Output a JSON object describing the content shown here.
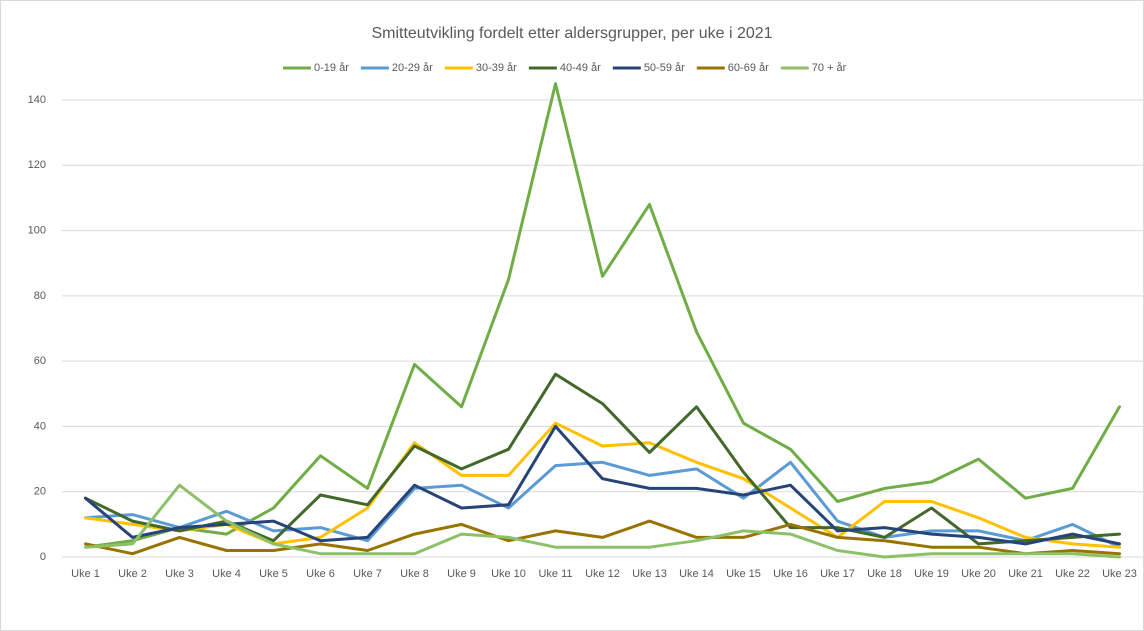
{
  "chart_data": {
    "type": "line",
    "title": "Smitteutvikling fordelt etter aldersgrupper, per uke i 2021",
    "categories": [
      "Uke 1",
      "Uke 2",
      "Uke 3",
      "Uke 4",
      "Uke 5",
      "Uke 6",
      "Uke 7",
      "Uke 8",
      "Uke 9",
      "Uke 10",
      "Uke 11",
      "Uke 12",
      "Uke 13",
      "Uke 14",
      "Uke 15",
      "Uke 16",
      "Uke 17",
      "Uke 18",
      "Uke 19",
      "Uke 20",
      "Uke 21",
      "Uke 22",
      "Uke 23"
    ],
    "series": [
      {
        "name": "0-19 år",
        "color": "#70ad47",
        "values": [
          3,
          5,
          9,
          7,
          15,
          31,
          21,
          59,
          46,
          85,
          145,
          86,
          108,
          69,
          41,
          33,
          17,
          21,
          23,
          30,
          18,
          21,
          46
        ]
      },
      {
        "name": "20-29 år",
        "color": "#5b9bd5",
        "values": [
          12,
          13,
          9,
          14,
          8,
          9,
          5,
          21,
          22,
          15,
          28,
          29,
          25,
          27,
          18,
          29,
          11,
          6,
          8,
          8,
          5,
          10,
          3
        ]
      },
      {
        "name": "30-39 år",
        "color": "#ffc000",
        "values": [
          12,
          10,
          8,
          10,
          4,
          6,
          15,
          35,
          25,
          25,
          41,
          34,
          35,
          29,
          24,
          15,
          6,
          17,
          17,
          12,
          6,
          4,
          3
        ]
      },
      {
        "name": "40-49 år",
        "color": "#43682b",
        "values": [
          18,
          11,
          8,
          11,
          5,
          19,
          16,
          34,
          27,
          33,
          56,
          47,
          32,
          46,
          26,
          9,
          9,
          6,
          15,
          4,
          5,
          6,
          7
        ]
      },
      {
        "name": "50-59 år",
        "color": "#264478",
        "values": [
          18,
          6,
          9,
          10,
          11,
          5,
          6,
          22,
          15,
          16,
          40,
          24,
          21,
          21,
          19,
          22,
          8,
          9,
          7,
          6,
          4,
          7,
          4
        ]
      },
      {
        "name": "60-69 år",
        "color": "#997300",
        "values": [
          4,
          1,
          6,
          2,
          2,
          4,
          2,
          7,
          10,
          5,
          8,
          6,
          11,
          6,
          6,
          10,
          6,
          5,
          3,
          3,
          1,
          2,
          1
        ]
      },
      {
        "name": "70 + år",
        "color": "#8cc168",
        "values": [
          3,
          4,
          22,
          11,
          4,
          1,
          1,
          1,
          7,
          6,
          3,
          3,
          3,
          5,
          8,
          7,
          2,
          0,
          1,
          1,
          1,
          1,
          0
        ]
      }
    ],
    "ylim": [
      0,
      140
    ],
    "yticks": [
      0,
      20,
      40,
      60,
      80,
      100,
      120,
      140
    ],
    "grid": true,
    "legend": "top"
  }
}
